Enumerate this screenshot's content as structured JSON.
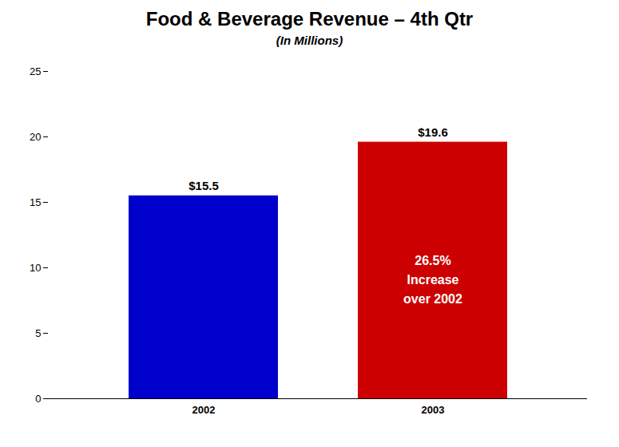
{
  "chart_data": {
    "type": "bar",
    "title": "Food & Beverage Revenue – 4th Qtr",
    "subtitle": "(In Millions)",
    "categories": [
      "2002",
      "2003"
    ],
    "values": [
      15.5,
      19.6
    ],
    "value_labels": [
      "$15.5",
      "$19.6"
    ],
    "colors": [
      "#0000CC",
      "#CC0000"
    ],
    "data_labels": true,
    "annotations": [
      {
        "text": "26.5%\nIncrease\nover 2002",
        "category": "2003"
      }
    ],
    "ylim": [
      0,
      25
    ],
    "yticks": [
      0,
      5,
      10,
      15,
      20,
      25
    ],
    "grid": false
  }
}
